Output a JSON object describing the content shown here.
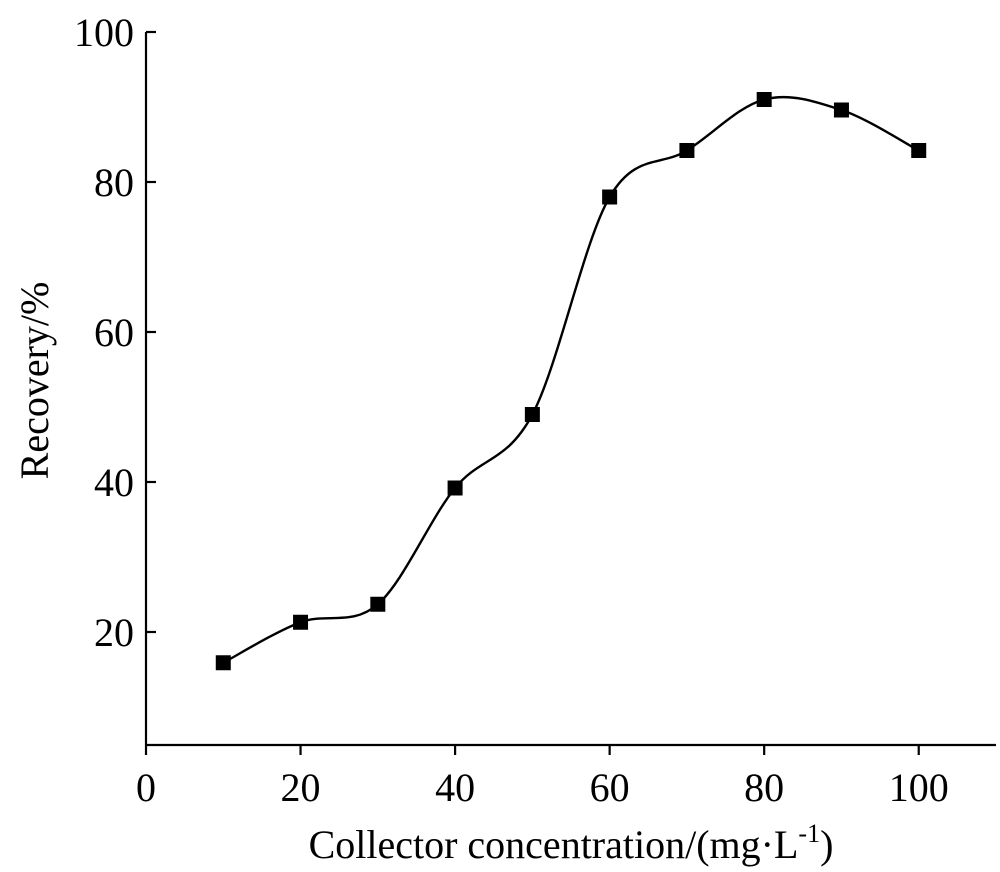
{
  "chart_data": {
    "type": "line",
    "title": "",
    "xlabel": "Collector concentration/(mg·L",
    "xlabel_superscript": "-1",
    "xlabel_suffix": ")",
    "ylabel": "Recovery/%",
    "xlim": [
      0,
      110
    ],
    "ylim": [
      5,
      100
    ],
    "xticks": [
      0,
      20,
      40,
      60,
      80,
      100
    ],
    "yticks": [
      20,
      40,
      60,
      80,
      100
    ],
    "x_tick_labels": [
      "0",
      "20",
      "40",
      "60",
      "80",
      "100"
    ],
    "y_tick_labels": [
      "20",
      "40",
      "60",
      "80",
      "100"
    ],
    "grid": false,
    "smooth": true,
    "marker": "square",
    "color": "#000000",
    "series": [
      {
        "x": [
          10,
          20,
          30,
          40,
          50,
          60,
          70,
          80,
          90,
          100
        ],
        "values": [
          15.9,
          21.3,
          23.7,
          39.2,
          49.0,
          78.0,
          84.2,
          91.0,
          89.6,
          84.2
        ]
      }
    ]
  }
}
